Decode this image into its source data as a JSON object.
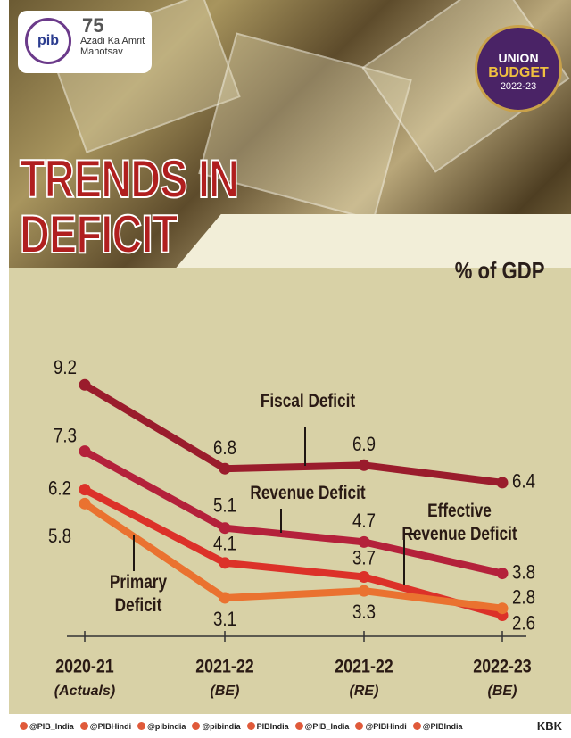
{
  "header": {
    "logo_text": "pib",
    "campaign": "Azadi Ka Amrit Mahotsav",
    "badge": [
      "UNION",
      "BUDGET",
      "2022-23"
    ]
  },
  "chart_data": {
    "type": "line",
    "title": "TRENDS IN DEFICIT",
    "subtitle": "% of GDP",
    "categories": [
      "2020-21",
      "2021-22",
      "2021-22",
      "2022-23"
    ],
    "category_sublabels": [
      "(Actuals)",
      "(BE)",
      "(RE)",
      "(BE)"
    ],
    "ylim": [
      2,
      10
    ],
    "series": [
      {
        "name": "Fiscal Deficit",
        "color": "#9a1c2c",
        "values": [
          9.2,
          6.8,
          6.9,
          6.4
        ]
      },
      {
        "name": "Revenue Deficit",
        "color": "#b4213b",
        "values": [
          7.3,
          5.1,
          4.7,
          3.8
        ]
      },
      {
        "name": "Effective Revenue Deficit",
        "color": "#dc3129",
        "values": [
          6.2,
          4.1,
          3.7,
          2.6
        ]
      },
      {
        "name": "Primary Deficit",
        "color": "#ea7230",
        "values": [
          5.8,
          3.1,
          3.3,
          2.8
        ]
      }
    ]
  },
  "footer": {
    "handles": [
      "@PIB_India",
      "@PIBHindi",
      "@pibindia",
      "@pibindia",
      "PIBIndia",
      "@PIB_India",
      "@PIBHindi",
      "@PIBIndia"
    ],
    "credit": "KBK"
  }
}
